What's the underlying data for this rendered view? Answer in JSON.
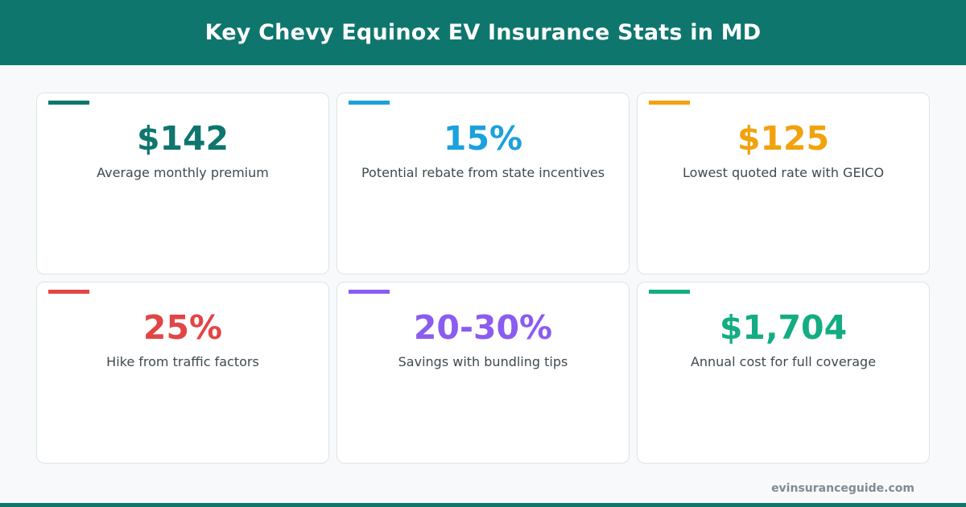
{
  "header": {
    "title": "Key Chevy Equinox EV Insurance Stats in MD"
  },
  "stats": [
    {
      "value": "$142",
      "label": "Average monthly premium",
      "color": "#0f766e"
    },
    {
      "value": "15%",
      "label": "Potential rebate from state incentives",
      "color": "#1ba1dd"
    },
    {
      "value": "$125",
      "label": "Lowest quoted rate with GEICO",
      "color": "#f2a20c"
    },
    {
      "value": "25%",
      "label": "Hike from traffic factors",
      "color": "#e24545"
    },
    {
      "value": "20-30%",
      "label": "Savings with bundling tips",
      "color": "#8b5cf0"
    },
    {
      "value": "$1,704",
      "label": "Annual cost for full coverage",
      "color": "#14ad83"
    }
  ],
  "footer": {
    "site": "evinsuranceguide.com"
  }
}
